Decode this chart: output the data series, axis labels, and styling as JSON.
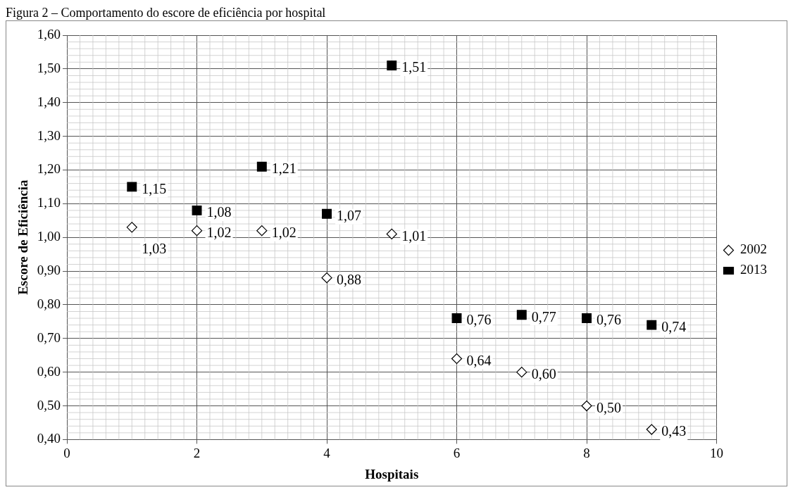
{
  "chart_data": {
    "type": "scatter",
    "title": "Figura 2 – Comportamento do escore de eficiência por hospital",
    "xlabel": "Hospitais",
    "ylabel": "Escore de Eficiência",
    "xlim": [
      0,
      10
    ],
    "xticks": [
      0,
      2,
      4,
      6,
      8,
      10
    ],
    "ylim": [
      0.4,
      1.6
    ],
    "yticks": [
      {
        "value": 0.4,
        "label": "0,40"
      },
      {
        "value": 0.5,
        "label": "0,50"
      },
      {
        "value": 0.6,
        "label": "0,60"
      },
      {
        "value": 0.7,
        "label": "0,70"
      },
      {
        "value": 0.8,
        "label": "0,80"
      },
      {
        "value": 0.9,
        "label": "0,90"
      },
      {
        "value": 1.0,
        "label": "1,00"
      },
      {
        "value": 1.1,
        "label": "1,10"
      },
      {
        "value": 1.2,
        "label": "1,20"
      },
      {
        "value": 1.3,
        "label": "1,30"
      },
      {
        "value": 1.4,
        "label": "1,40"
      },
      {
        "value": 1.5,
        "label": "1,50"
      },
      {
        "value": 1.6,
        "label": "1,60"
      }
    ],
    "grid": true,
    "legend": "right",
    "series": [
      {
        "name": "2002",
        "color": "#ffffff",
        "marker": "diamond",
        "x": [
          1,
          2,
          3,
          4,
          5,
          6,
          7,
          8,
          9
        ],
        "values": [
          1.03,
          1.02,
          1.02,
          0.88,
          1.01,
          0.64,
          0.6,
          0.5,
          0.43
        ],
        "value_labels": [
          "1,03",
          "1,02",
          "1,02",
          "0,88",
          "1,01",
          "0,64",
          "0,60",
          "0,50",
          "0,43"
        ]
      },
      {
        "name": "2013",
        "color": "#000000",
        "marker": "square",
        "x": [
          1,
          2,
          3,
          4,
          5,
          6,
          7,
          8,
          9
        ],
        "values": [
          1.15,
          1.08,
          1.21,
          1.07,
          1.51,
          0.76,
          0.77,
          0.76,
          0.74
        ],
        "value_labels": [
          "1,15",
          "1,08",
          "1,21",
          "1,07",
          "1,51",
          "0,76",
          "0,77",
          "0,76",
          "0,74"
        ]
      }
    ]
  }
}
